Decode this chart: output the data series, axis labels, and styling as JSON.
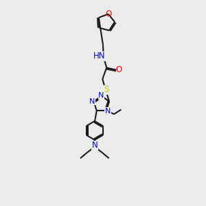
{
  "bg_color": "#ebebeb",
  "bond_color": "#1a1a1a",
  "atom_colors": {
    "O": "#ff0000",
    "N": "#0000ee",
    "S": "#cccc00",
    "H": "#2e8b8b",
    "C": "#1a1a1a"
  },
  "line_width": 1.5,
  "figsize": [
    3.0,
    3.0
  ],
  "dpi": 100
}
